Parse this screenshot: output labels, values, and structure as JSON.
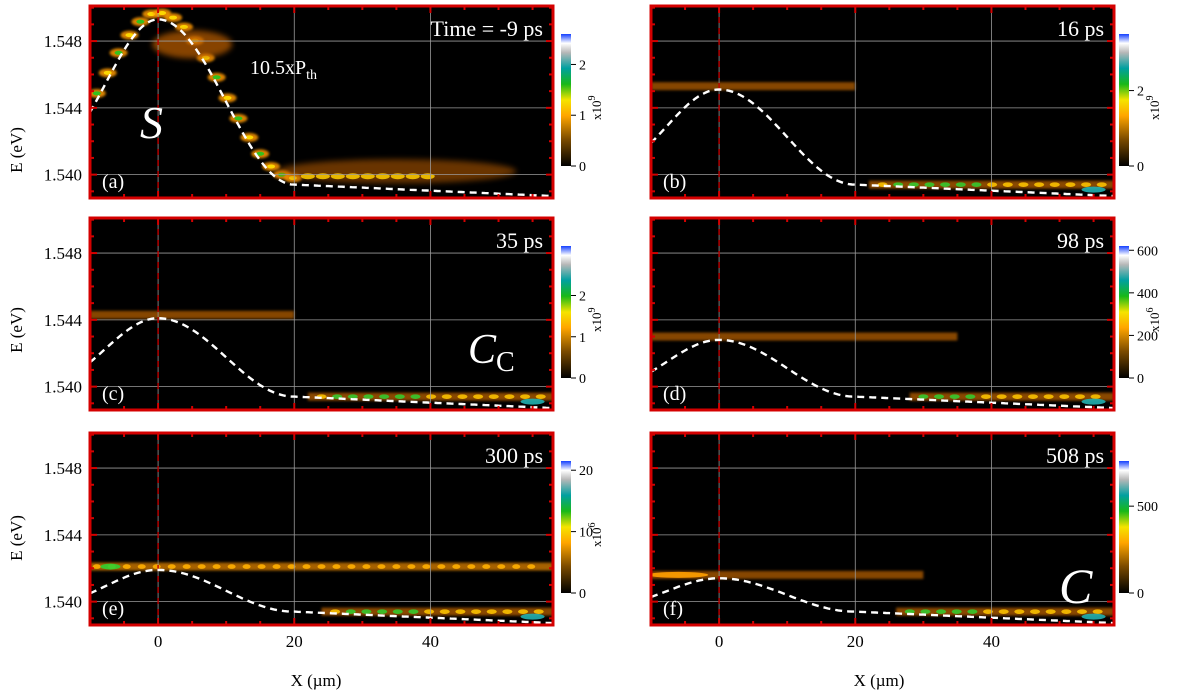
{
  "figure": {
    "x_axis_label": "X (µm)",
    "y_axis_label": "E (eV)",
    "x_ticks": [
      0,
      20,
      40
    ],
    "y_ticks": [
      "1.540",
      "1.544",
      "1.548"
    ]
  },
  "chart_data": [
    {
      "type": "heatmap",
      "panel": "(a)",
      "time_label": "Time = -9 ps",
      "annotation": "10.5xP",
      "annotation_sub": "th",
      "region_label": "S",
      "xlim": [
        -10,
        58
      ],
      "ylim": [
        1.5386,
        1.5501
      ],
      "colorbar": {
        "ticks": [
          0,
          1,
          2
        ],
        "max": 2.6,
        "multiplier_base": "x10",
        "multiplier_exp": "9"
      },
      "dashed_curve": {
        "peak_energy": 1.5493,
        "floor_energy": 1.5394
      }
    },
    {
      "type": "heatmap",
      "panel": "(b)",
      "time_label": "16 ps",
      "xlim": [
        -10,
        58
      ],
      "ylim": [
        1.5386,
        1.5501
      ],
      "colorbar": {
        "ticks": [
          0,
          2
        ],
        "max": 3.5,
        "multiplier_base": "x10",
        "multiplier_exp": "9"
      },
      "dashed_curve": {
        "peak_energy": 1.5451,
        "floor_energy": 1.5394
      }
    },
    {
      "type": "heatmap",
      "panel": "(c)",
      "time_label": "35 ps",
      "region_label": "C",
      "region_sub": "C",
      "xlim": [
        -10,
        58
      ],
      "ylim": [
        1.5386,
        1.5501
      ],
      "colorbar": {
        "ticks": [
          0,
          1,
          2
        ],
        "max": 3.2,
        "multiplier_base": "x10",
        "multiplier_exp": "9"
      },
      "dashed_curve": {
        "peak_energy": 1.5441,
        "floor_energy": 1.5394
      }
    },
    {
      "type": "heatmap",
      "panel": "(d)",
      "time_label": "98 ps",
      "xlim": [
        -10,
        58
      ],
      "ylim": [
        1.5386,
        1.5501
      ],
      "colorbar": {
        "ticks": [
          0,
          200,
          400,
          600
        ],
        "max": 620,
        "multiplier_base": "x10",
        "multiplier_exp": "6"
      },
      "dashed_curve": {
        "peak_energy": 1.5428,
        "floor_energy": 1.5394
      }
    },
    {
      "type": "heatmap",
      "panel": "(e)",
      "time_label": "300 ps",
      "xlim": [
        -10,
        58
      ],
      "ylim": [
        1.5386,
        1.5501
      ],
      "colorbar": {
        "ticks": [
          0,
          10,
          20
        ],
        "max": 21.5,
        "multiplier_base": "x10",
        "multiplier_exp": "6"
      },
      "dashed_curve": {
        "peak_energy": 1.5419,
        "floor_energy": 1.5394
      }
    },
    {
      "type": "heatmap",
      "panel": "(f)",
      "time_label": "508 ps",
      "region_label": "C",
      "xlim": [
        -10,
        58
      ],
      "ylim": [
        1.5386,
        1.5501
      ],
      "colorbar": {
        "ticks": [
          0,
          500
        ],
        "max": 760
      },
      "dashed_curve": {
        "peak_energy": 1.5414,
        "floor_energy": 1.5394
      }
    }
  ]
}
